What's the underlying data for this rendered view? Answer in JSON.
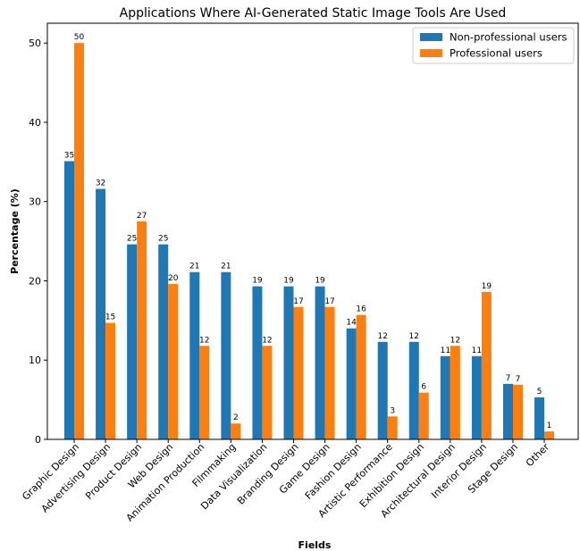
{
  "chart_data": {
    "type": "bar",
    "title": "Applications Where AI-Generated Static Image Tools Are Used",
    "xlabel": "Fields",
    "ylabel": "Percentage (%)",
    "ylim": [
      0,
      52.5
    ],
    "yticks": [
      0,
      10,
      20,
      30,
      40,
      50
    ],
    "legend_position": "top-right",
    "grid": false,
    "categories": [
      "Graphic Design",
      "Advertising Design",
      "Product Design",
      "Web Design",
      "Animation Production",
      "Filmmaking",
      "Data Visualization",
      "Branding Design",
      "Game Design",
      "Fashion Design",
      "Artistic Performance",
      "Exhibition Design",
      "Architectural Design",
      "Interior Design",
      "Stage Design",
      "Other"
    ],
    "series": [
      {
        "name": "Non-professional users",
        "color": "#1f77b4",
        "values": [
          35.1,
          31.6,
          24.6,
          24.6,
          21.1,
          21.1,
          19.3,
          19.3,
          19.3,
          14.0,
          12.3,
          12.3,
          10.5,
          10.5,
          7.0,
          5.3
        ],
        "labels": [
          "35",
          "32",
          "25",
          "25",
          "21",
          "21",
          "19",
          "19",
          "19",
          "14",
          "12",
          "12",
          "11",
          "11",
          "7",
          "5"
        ]
      },
      {
        "name": "Professional users",
        "color": "#ff7f0e",
        "values": [
          50.0,
          14.7,
          27.5,
          19.6,
          11.8,
          2.0,
          11.8,
          16.7,
          16.7,
          15.7,
          2.9,
          5.9,
          11.8,
          18.6,
          6.9,
          1.0
        ],
        "labels": [
          "50",
          "15",
          "27",
          "20",
          "12",
          "2",
          "12",
          "17",
          "17",
          "16",
          "3",
          "6",
          "12",
          "19",
          "7",
          "1"
        ]
      }
    ]
  }
}
